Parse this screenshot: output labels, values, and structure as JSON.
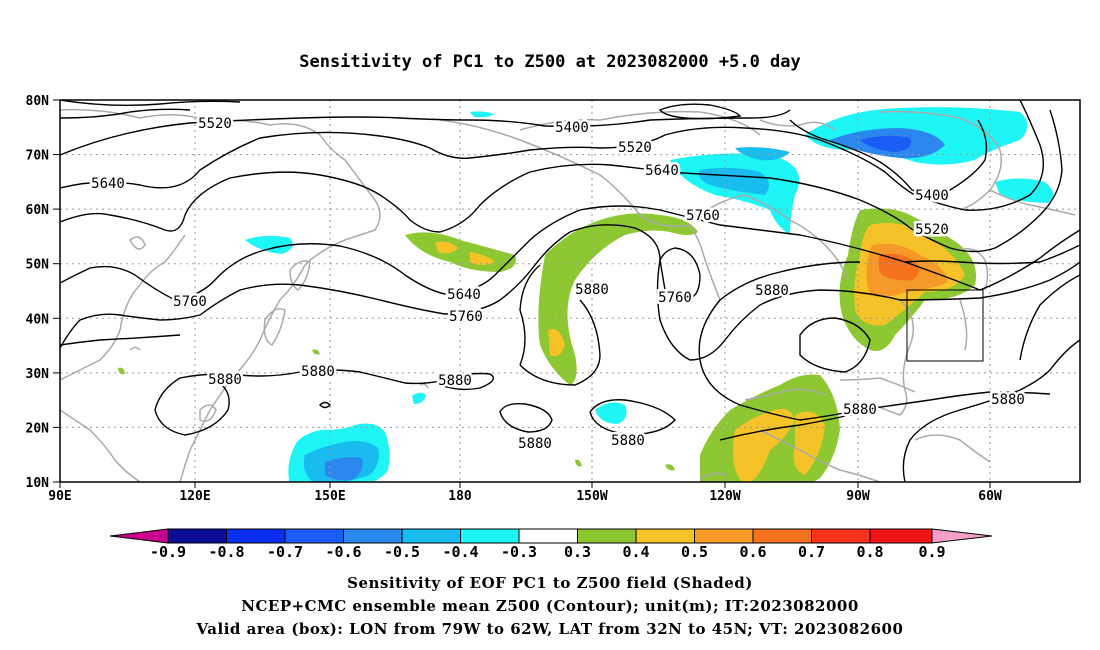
{
  "title": "Sensitivity of PC1 to Z500 at 2023082000 +5.0 day",
  "axes": {
    "lat_labels": [
      "80N",
      "70N",
      "60N",
      "50N",
      "40N",
      "30N",
      "20N",
      "10N"
    ],
    "lon_labels": [
      "90E",
      "120E",
      "150E",
      "180",
      "150W",
      "120W",
      "90W",
      "60W"
    ]
  },
  "contour_labels": [
    "5400",
    "5400",
    "5520",
    "5520",
    "5520",
    "5640",
    "5640",
    "5640",
    "5760",
    "5760",
    "5760",
    "5760",
    "5880",
    "5880",
    "5880",
    "5880",
    "5880",
    "5880",
    "5880",
    "5880"
  ],
  "colorbar": {
    "labels": [
      "-0.9",
      "-0.8",
      "-0.7",
      "-0.6",
      "-0.5",
      "-0.4",
      "-0.3",
      "0.3",
      "0.4",
      "0.5",
      "0.6",
      "0.7",
      "0.8",
      "0.9"
    ],
    "colors": [
      "#c8008c",
      "#0b0d96",
      "#0a2ff0",
      "#1a5cf5",
      "#2b87ee",
      "#19bcef",
      "#1ef5f5",
      "#ffffff",
      "#8dc832",
      "#f5c228",
      "#f59a28",
      "#f5711e",
      "#f5321e",
      "#f01414",
      "#f4a0c8"
    ]
  },
  "valid_box": {
    "lon_w": -79,
    "lon_e": -62,
    "lat_s": 32,
    "lat_n": 45
  },
  "caption": [
    "Sensitivity of EOF PC1 to Z500 field (Shaded)",
    "NCEP+CMC ensemble mean Z500 (Contour); unit(m); IT:2023082000",
    "Valid area (box): LON from 79W to 62W, LAT from 32N to 45N; VT: 2023082600"
  ]
}
